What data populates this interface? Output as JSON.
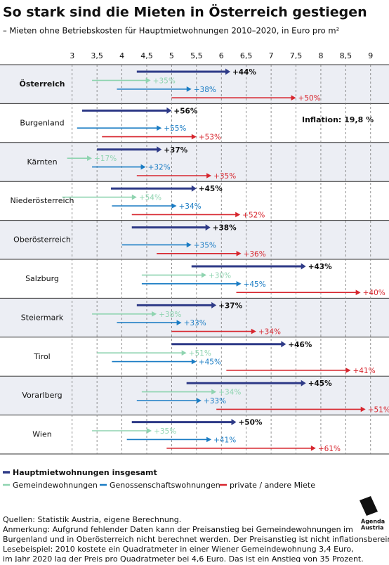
{
  "chart_data": {
    "type": "arrow",
    "title": "So stark sind die Mieten in Österreich gestiegen",
    "subtitle": "– Mieten ohne Betriebskosten für Hauptmietwohnungen 2010–2020, in Euro pro m²",
    "annotation": "Inflation: 19,8 %",
    "categories": [
      "Österreich",
      "Burgenland",
      "Kärnten",
      "Niederösterreich",
      "Oberösterreich",
      "Salzburg",
      "Steiermark",
      "Tirol",
      "Vorarlberg",
      "Wien"
    ],
    "xlim": [
      1.55,
      9.37
    ],
    "xticks": [
      3,
      {
        "value": 3.5,
        "label": "3,5"
      },
      4,
      {
        "value": 4.5,
        "label": "4,5"
      },
      5,
      {
        "value": 5.5,
        "label": "5,5"
      },
      6,
      {
        "value": 6.5,
        "label": "6,5"
      },
      7,
      {
        "value": 7.5,
        "label": "7,5"
      },
      8,
      {
        "value": 8.5,
        "label": "8,5"
      },
      9
    ],
    "grid": true,
    "series": [
      {
        "name": "Hauptmietwohnungen insgesamt",
        "color": "#2e3a87",
        "start": [
          4.3,
          3.2,
          3.5,
          3.78,
          4.2,
          5.4,
          4.3,
          5.0,
          5.3,
          4.2
        ],
        "values": [
          6.18,
          5.0,
          4.8,
          5.5,
          5.78,
          7.7,
          5.9,
          7.3,
          7.7,
          6.3
        ],
        "labels": [
          "+44%",
          "+56%",
          "+37%",
          "+45%",
          "+38%",
          "+43%",
          "+37%",
          "+46%",
          "+45%",
          "+50%"
        ]
      },
      {
        "name": "Gemeindewohnungen",
        "color": "#8fd4b0",
        "start": [
          3.4,
          null,
          2.9,
          2.8,
          null,
          4.4,
          3.4,
          3.5,
          4.4,
          3.4
        ],
        "values": [
          4.58,
          null,
          3.4,
          4.3,
          null,
          5.7,
          4.7,
          5.3,
          5.9,
          4.6
        ],
        "labels": [
          "+35%",
          null,
          "+17%",
          "+54%",
          null,
          "+30%",
          "+38%",
          "+51%",
          "+34%",
          "+35%"
        ]
      },
      {
        "name": "Genossenschaftswohnungen",
        "color": "#1a7cc4",
        "start": [
          3.9,
          3.1,
          3.4,
          3.8,
          4.0,
          4.4,
          3.9,
          3.8,
          4.3,
          4.1
        ],
        "values": [
          5.4,
          4.8,
          4.48,
          5.1,
          5.4,
          6.4,
          5.2,
          5.5,
          5.6,
          5.8
        ],
        "labels": [
          "+38%",
          "+55%",
          "+32%",
          "+34%",
          "+35%",
          "+45%",
          "+33%",
          "+45%",
          "+33%",
          "+41%"
        ]
      },
      {
        "name": "private / andere Miete",
        "color": "#d7262e",
        "start": [
          5.0,
          3.6,
          4.3,
          4.2,
          4.7,
          6.3,
          5.0,
          6.1,
          5.9,
          4.9
        ],
        "values": [
          7.5,
          5.5,
          5.8,
          6.38,
          6.4,
          8.8,
          6.7,
          8.6,
          8.9,
          7.9
        ],
        "labels": [
          "+50%",
          "+53%",
          "+35%",
          "+52%",
          "+36%",
          "+40%",
          "+34%",
          "+41%",
          "+51%",
          "+61%"
        ]
      }
    ],
    "notes": [
      "Quellen: Statistik Austria, eigene Berechnung.",
      "Anmerkung: Aufgrund fehlender Daten kann der Preisanstieg bei Gemeindewohnungen im",
      "Burgenland und in Oberösterreich nicht berechnet werden. Der Preisanstieg ist nicht inflationsbereinigt.",
      "Lesebeispiel: 2010 kostete ein Quadratmeter in einer Wiener Gemeindewohnung 3,4 Euro,",
      "im Jahr 2020 lag der Preis pro Quadratmeter bei 4,6 Euro. Das ist ein Anstieg von 35 Prozent."
    ]
  },
  "logo": [
    "Agenda",
    "Austria"
  ]
}
